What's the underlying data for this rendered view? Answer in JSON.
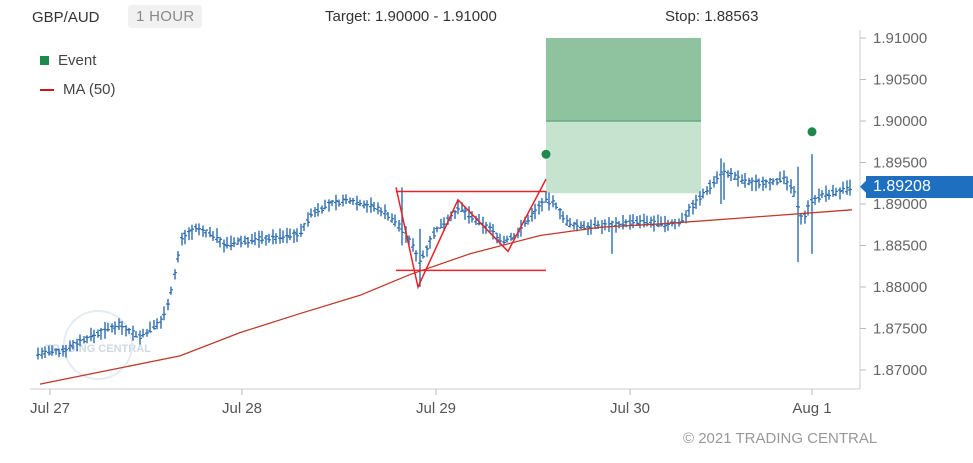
{
  "header": {
    "symbol": "GBP/AUD",
    "timeframe": "1 HOUR",
    "target_label": "Target:",
    "target_value": "1.90000 - 1.91000",
    "stop_label": "Stop:",
    "stop_value": "1.88563"
  },
  "legend": {
    "event": "Event",
    "ma": "MA (50)"
  },
  "current_price": "1.89208",
  "copyright": "© 2021 TRADING CENTRAL",
  "watermark": "TRADING CENTRAL",
  "colors": {
    "bars": "#2b6cb0",
    "ma": "#c0392b",
    "pattern": "#e8232a",
    "event": "#1b8a4b",
    "target_dark": "#8fc39f",
    "target_light": "#c5e3cf",
    "price_tag": "#1f6fc1"
  },
  "chart_data": {
    "type": "ohlc",
    "x_ticks": [
      "Jul 27",
      "Jul 28",
      "Jul 29",
      "Jul 30",
      "Aug 1"
    ],
    "y_ticks": [
      "1.87000",
      "1.87500",
      "1.88000",
      "1.88500",
      "1.89000",
      "1.89500",
      "1.90000",
      "1.90500",
      "1.91000"
    ],
    "ylim": [
      1.868,
      1.911
    ],
    "ma_50": [
      1.8683,
      1.87,
      1.8717,
      1.8745,
      1.8768,
      1.879,
      1.8815,
      1.884,
      1.8862,
      1.8872,
      1.8876,
      1.8883,
      1.8893
    ],
    "pattern_points": [
      1.892,
      1.88,
      1.8905,
      1.8843,
      1.893
    ],
    "pattern_top": 1.8915,
    "pattern_bottom": 1.882,
    "target_zone": [
      1.9,
      1.91
    ],
    "projection_zone": [
      1.8913,
      1.9
    ],
    "events": [
      1.896,
      1.8987
    ],
    "last_price": 1.89208,
    "watermark": "TRADING CENTRAL"
  }
}
